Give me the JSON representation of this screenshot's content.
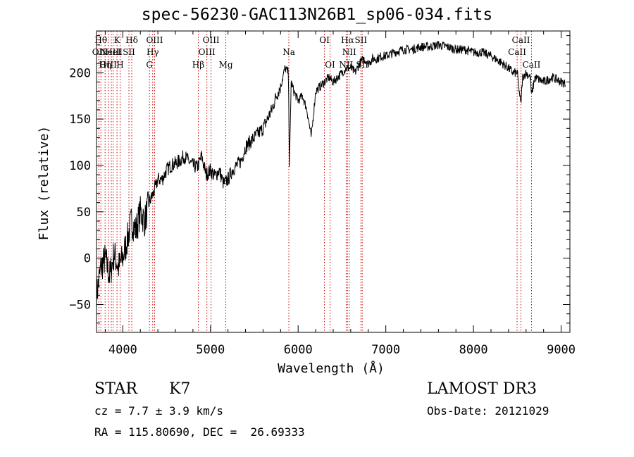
{
  "chart_data": {
    "type": "line",
    "title": "spec-56230-GAC113N26B1_sp06-034.fits",
    "xlabel": "Wavelength (Å)",
    "ylabel": "Flux (relative)",
    "xlim": [
      3700,
      9100
    ],
    "ylim": [
      -80,
      245
    ],
    "xticks": [
      4000,
      5000,
      6000,
      7000,
      8000,
      9000
    ],
    "yticks": [
      -50,
      0,
      50,
      100,
      150,
      200
    ],
    "series": [
      {
        "name": "spectrum",
        "x": [
          3700,
          3750,
          3800,
          3850,
          3900,
          3950,
          4000,
          4050,
          4100,
          4150,
          4200,
          4250,
          4300,
          4350,
          4400,
          4450,
          4500,
          4550,
          4600,
          4650,
          4700,
          4750,
          4800,
          4850,
          4900,
          4950,
          5000,
          5050,
          5100,
          5150,
          5200,
          5250,
          5300,
          5350,
          5400,
          5450,
          5500,
          5550,
          5600,
          5650,
          5700,
          5750,
          5800,
          5850,
          5890,
          5900,
          5920,
          5950,
          6000,
          6050,
          6100,
          6150,
          6200,
          6250,
          6300,
          6350,
          6400,
          6450,
          6500,
          6550,
          6600,
          6650,
          6700,
          6750,
          6800,
          6850,
          6900,
          6950,
          7000,
          7100,
          7200,
          7300,
          7400,
          7500,
          7600,
          7700,
          7800,
          7900,
          8000,
          8100,
          8200,
          8300,
          8400,
          8450,
          8500,
          8540,
          8560,
          8600,
          8650,
          8662,
          8700,
          8800,
          8900,
          9000,
          9050
        ],
        "values": [
          -40,
          -10,
          0,
          -20,
          5,
          -10,
          0,
          20,
          40,
          30,
          50,
          40,
          60,
          70,
          85,
          85,
          95,
          100,
          102,
          105,
          110,
          105,
          100,
          98,
          110,
          90,
          95,
          88,
          95,
          80,
          85,
          95,
          100,
          105,
          120,
          125,
          130,
          135,
          140,
          150,
          160,
          175,
          185,
          205,
          200,
          95,
          190,
          180,
          170,
          175,
          160,
          130,
          180,
          185,
          190,
          195,
          190,
          195,
          200,
          205,
          205,
          200,
          210,
          215,
          210,
          215,
          215,
          218,
          218,
          222,
          225,
          225,
          228,
          228,
          230,
          228,
          225,
          225,
          222,
          222,
          218,
          212,
          205,
          200,
          200,
          165,
          195,
          200,
          195,
          175,
          195,
          190,
          195,
          190,
          188
        ]
      }
    ],
    "lines": [
      {
        "wl": 3727,
        "label": "OII",
        "row": 2
      },
      {
        "wl": 3750,
        "label": "Hθ",
        "row": 1
      },
      {
        "wl": 3798,
        "label": "Hη",
        "row": 3
      },
      {
        "wl": 3835,
        "label": "OIII",
        "row": 3
      },
      {
        "wl": 3869,
        "label": "NeIII",
        "row": 2
      },
      {
        "wl": 3889,
        "label": "HeI",
        "row": 2
      },
      {
        "wl": 3934,
        "label": "K",
        "row": 1
      },
      {
        "wl": 3969,
        "label": "H",
        "row": 3
      },
      {
        "wl": 4070,
        "label": "SII",
        "row": 2
      },
      {
        "wl": 4102,
        "label": "Hδ",
        "row": 1
      },
      {
        "wl": 4304,
        "label": "G",
        "row": 3
      },
      {
        "wl": 4341,
        "label": "Hγ",
        "row": 2
      },
      {
        "wl": 4363,
        "label": "OIII",
        "row": 1
      },
      {
        "wl": 4861,
        "label": "Hβ",
        "row": 3
      },
      {
        "wl": 4959,
        "label": "OIII",
        "row": 2
      },
      {
        "wl": 5007,
        "label": "OIII",
        "row": 1
      },
      {
        "wl": 5175,
        "label": "Mg",
        "row": 3
      },
      {
        "wl": 5894,
        "label": "Na",
        "row": 2
      },
      {
        "wl": 6300,
        "label": "OI",
        "row": 1
      },
      {
        "wl": 6364,
        "label": "OI",
        "row": 3
      },
      {
        "wl": 6548,
        "label": "NII",
        "row": 3
      },
      {
        "wl": 6563,
        "label": "Hα",
        "row": 1
      },
      {
        "wl": 6583,
        "label": "NII",
        "row": 2
      },
      {
        "wl": 6716,
        "label": "SII",
        "row": 1
      },
      {
        "wl": 6731,
        "label": "SII",
        "row": 3
      },
      {
        "wl": 8498,
        "label": "CaII",
        "row": 2
      },
      {
        "wl": 8542,
        "label": "CaII",
        "row": 1
      },
      {
        "wl": 8662,
        "label": "CaII",
        "row": 3
      }
    ]
  },
  "info": {
    "class": "STAR",
    "subclass": "K7",
    "survey": "LAMOST DR3",
    "cz": "cz = 7.7 ± 3.9 km/s",
    "obs_date": "Obs-Date: 20121029",
    "coords": "RA = 115.80690, DEC =  26.69333"
  },
  "colors": {
    "axis": "#000000",
    "spectrum": "#000000",
    "line_marker": "#cc0000"
  }
}
